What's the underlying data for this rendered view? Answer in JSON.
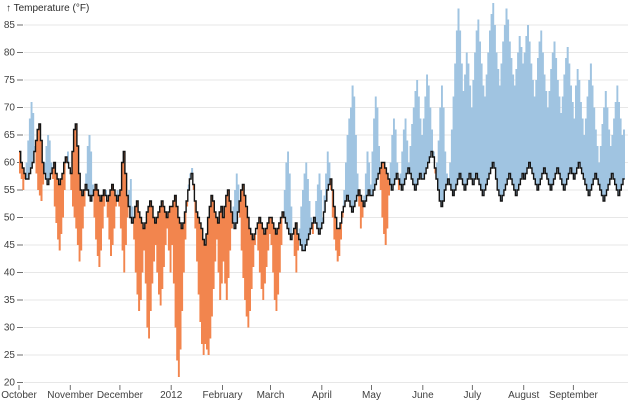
{
  "figure": {
    "y_axis_title": "↑ Temperature (°F)"
  },
  "chart_data": {
    "type": "area",
    "subtype": "difference-step-chart",
    "title": "Temperature (°F)",
    "xlabel": "",
    "ylabel": "Temperature (°F)",
    "x_domain": "2011 October through 2012 September (daily, 366 days)",
    "y_domain": [
      20,
      89
    ],
    "grid": "horizontal only",
    "legend_position": "none",
    "y_ticks": [
      20,
      25,
      30,
      35,
      40,
      45,
      50,
      55,
      60,
      65,
      70,
      75,
      80,
      85
    ],
    "x_ticks": [
      {
        "label": "October",
        "day": 0
      },
      {
        "label": "November",
        "day": 31
      },
      {
        "label": "December",
        "day": 61
      },
      {
        "label": "2012",
        "day": 92
      },
      {
        "label": "February",
        "day": 123
      },
      {
        "label": "March",
        "day": 152
      },
      {
        "label": "April",
        "day": 183
      },
      {
        "label": "May",
        "day": 213
      },
      {
        "label": "June",
        "day": 244
      },
      {
        "label": "July",
        "day": 274
      },
      {
        "label": "August",
        "day": 305
      },
      {
        "label": "September",
        "day": 335
      }
    ],
    "colors": {
      "above": "#a0c4e1",
      "below": "#f2854e",
      "line": "#141414",
      "grid": "#e7e7e7",
      "tick": "#6f6f6f",
      "text": "#404040"
    },
    "series": [
      {
        "role": "line",
        "name": "black-step-line (reference daily temperature, °F)",
        "values": [
          62,
          60,
          59,
          58,
          57,
          57,
          58,
          59,
          60,
          62,
          64,
          66,
          67,
          64,
          60,
          58,
          57,
          56,
          57,
          58,
          59,
          60,
          58,
          57,
          56,
          57,
          58,
          60,
          61,
          60,
          59,
          58,
          62,
          66,
          67,
          63,
          58,
          55,
          54,
          55,
          56,
          55,
          54,
          53,
          54,
          55,
          56,
          55,
          54,
          53,
          54,
          55,
          54,
          53,
          54,
          55,
          56,
          55,
          54,
          53,
          54,
          55,
          60,
          62,
          58,
          54,
          52,
          50,
          49,
          50,
          52,
          53,
          51,
          50,
          49,
          48,
          49,
          51,
          52,
          53,
          52,
          50,
          49,
          50,
          51,
          52,
          53,
          52,
          51,
          50,
          51,
          52,
          52,
          53,
          54,
          52,
          50,
          49,
          48,
          49,
          51,
          53,
          55,
          57,
          58,
          56,
          53,
          51,
          50,
          49,
          48,
          46,
          45,
          47,
          50,
          52,
          54,
          53,
          51,
          50,
          49,
          51,
          52,
          50,
          52,
          54,
          55,
          53,
          51,
          49,
          48,
          49,
          51,
          53,
          55,
          56,
          54,
          52,
          50,
          48,
          47,
          46,
          47,
          48,
          49,
          50,
          49,
          48,
          47,
          48,
          49,
          50,
          50,
          49,
          48,
          47,
          48,
          49,
          50,
          51,
          50,
          49,
          48,
          47,
          46,
          47,
          48,
          49,
          47,
          46,
          45,
          44,
          44,
          45,
          46,
          47,
          48,
          49,
          50,
          49,
          48,
          47,
          48,
          49,
          51,
          53,
          55,
          56,
          57,
          55,
          52,
          50,
          48,
          48,
          49,
          51,
          52,
          53,
          54,
          53,
          52,
          51,
          52,
          53,
          54,
          55,
          54,
          53,
          52,
          53,
          54,
          55,
          54,
          54,
          55,
          56,
          57,
          58,
          59,
          60,
          60,
          59,
          58,
          57,
          56,
          55,
          56,
          57,
          58,
          57,
          56,
          55,
          56,
          57,
          58,
          59,
          58,
          57,
          56,
          55,
          56,
          57,
          58,
          57,
          57,
          58,
          59,
          60,
          61,
          62,
          61,
          59,
          57,
          55,
          53,
          52,
          53,
          55,
          56,
          57,
          56,
          55,
          54,
          55,
          56,
          57,
          58,
          57,
          56,
          55,
          56,
          57,
          58,
          57,
          56,
          57,
          58,
          57,
          56,
          55,
          54,
          55,
          56,
          57,
          58,
          59,
          60,
          59,
          57,
          55,
          54,
          53,
          54,
          55,
          56,
          57,
          58,
          57,
          56,
          55,
          54,
          55,
          56,
          57,
          58,
          57,
          58,
          59,
          60,
          59,
          58,
          57,
          56,
          55,
          56,
          57,
          58,
          59,
          58,
          57,
          56,
          55,
          56,
          57,
          58,
          59,
          58,
          57,
          56,
          55,
          56,
          57,
          58,
          59,
          58,
          57,
          58,
          59,
          60,
          59,
          58,
          57,
          56,
          55,
          54,
          55,
          56,
          57,
          58,
          57,
          56,
          55,
          54,
          53,
          54,
          55,
          56,
          57,
          58,
          57,
          56,
          55,
          54,
          55,
          56,
          57
        ]
      },
      {
        "role": "band",
        "name": "shaded-band-series (comparison daily temperature, °F; blue above line, orange below)",
        "values": [
          58,
          57,
          55,
          57,
          60,
          64,
          68,
          71,
          69,
          63,
          58,
          55,
          54,
          53,
          56,
          60,
          63,
          65,
          64,
          60,
          57,
          52,
          49,
          46,
          44,
          47,
          50,
          55,
          60,
          62,
          59,
          55,
          52,
          50,
          48,
          45,
          42,
          44,
          48,
          52,
          58,
          63,
          65,
          62,
          56,
          50,
          46,
          43,
          41,
          44,
          48,
          52,
          55,
          50,
          46,
          43,
          45,
          48,
          52,
          55,
          52,
          48,
          44,
          40,
          45,
          50,
          55,
          57,
          52,
          46,
          40,
          36,
          33,
          35,
          40,
          44,
          38,
          30,
          28,
          33,
          38,
          42,
          45,
          40,
          36,
          34,
          37,
          41,
          45,
          48,
          44,
          40,
          45,
          38,
          30,
          24,
          21,
          26,
          33,
          40,
          46,
          52,
          56,
          58,
          59,
          55,
          48,
          42,
          36,
          31,
          27,
          25,
          27,
          26,
          25,
          28,
          32,
          37,
          42,
          46,
          40,
          35,
          38,
          42,
          38,
          35,
          39,
          44,
          48,
          52,
          55,
          58,
          56,
          50,
          44,
          39,
          35,
          32,
          30,
          33,
          37,
          41,
          45,
          48,
          44,
          40,
          37,
          35,
          38,
          41,
          44,
          47,
          45,
          40,
          35,
          33,
          36,
          40,
          45,
          50,
          55,
          60,
          62,
          58,
          52,
          47,
          43,
          40,
          44,
          48,
          52,
          55,
          58,
          60,
          57,
          53,
          50,
          47,
          50,
          53,
          56,
          58,
          55,
          50,
          54,
          58,
          62,
          60,
          55,
          50,
          46,
          44,
          42,
          43,
          46,
          50,
          55,
          60,
          65,
          68,
          70,
          74,
          72,
          65,
          58,
          52,
          48,
          50,
          54,
          58,
          62,
          60,
          56,
          62,
          68,
          72,
          70,
          63,
          55,
          50,
          47,
          45,
          48,
          54,
          60,
          65,
          68,
          66,
          60,
          55,
          58,
          62,
          66,
          68,
          64,
          60,
          63,
          67,
          70,
          73,
          75,
          72,
          68,
          65,
          68,
          72,
          76,
          74,
          70,
          66,
          62,
          58,
          60,
          64,
          70,
          74,
          70,
          62,
          58,
          57,
          60,
          66,
          72,
          78,
          84,
          88,
          84,
          78,
          73,
          76,
          80,
          78,
          74,
          70,
          75,
          80,
          84,
          86,
          82,
          78,
          74,
          72,
          76,
          80,
          84,
          87,
          89,
          85,
          80,
          77,
          74,
          78,
          82,
          85,
          88,
          86,
          82,
          79,
          76,
          74,
          77,
          80,
          83,
          81,
          78,
          80,
          83,
          85,
          82,
          78,
          75,
          72,
          75,
          79,
          82,
          84,
          80,
          76,
          73,
          70,
          73,
          77,
          80,
          82,
          79,
          75,
          72,
          69,
          72,
          76,
          79,
          81,
          78,
          74,
          71,
          68,
          74,
          77,
          75,
          71,
          68,
          65,
          68,
          72,
          75,
          78,
          74,
          70,
          66,
          63,
          60,
          63,
          67,
          70,
          73,
          70,
          66,
          63,
          65,
          68,
          71,
          74,
          71,
          68,
          65,
          66
        ]
      }
    ]
  }
}
